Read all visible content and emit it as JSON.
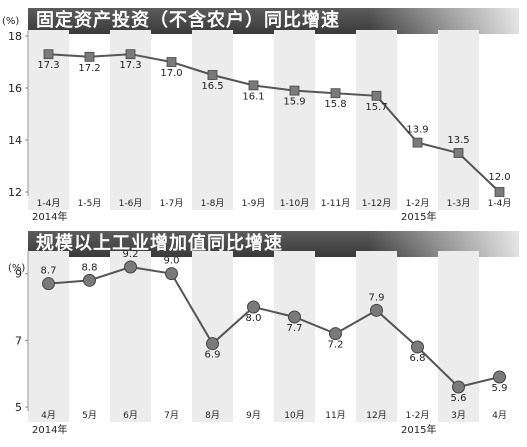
{
  "chart_data": [
    {
      "type": "line",
      "title": "固定资产投资（不含农户）同比增速",
      "unit": "(%)",
      "categories": [
        "1-4月",
        "1-5月",
        "1-6月",
        "1-7月",
        "1-8月",
        "1-9月",
        "1-10月",
        "1-11月",
        "1-12月",
        "1-2月",
        "1-3月",
        "1-4月"
      ],
      "values": [
        17.3,
        17.2,
        17.3,
        17.0,
        16.5,
        16.1,
        15.9,
        15.8,
        15.7,
        13.9,
        13.5,
        12.0
      ],
      "data_labels": [
        "17.3",
        "17.2",
        "17.3",
        "17.0",
        "16.5",
        "16.1",
        "15.9",
        "15.8",
        "15.7",
        "13.9",
        "13.5",
        "12.0"
      ],
      "ylim": [
        12,
        18
      ],
      "yticks": [
        12,
        14,
        16,
        18
      ],
      "year_labels": [
        {
          "label": "2014年",
          "index": 0
        },
        {
          "label": "2015年",
          "index": 9
        }
      ],
      "marker": "square",
      "grid": "alternating-column-bands"
    },
    {
      "type": "line",
      "title": "规模以上工业增加值同比增速",
      "unit": "(%)",
      "categories": [
        "4月",
        "5月",
        "6月",
        "7月",
        "8月",
        "9月",
        "10月",
        "11月",
        "12月",
        "1-2月",
        "3月",
        "4月"
      ],
      "values": [
        8.7,
        8.8,
        9.2,
        9.0,
        6.9,
        8.0,
        7.7,
        7.2,
        7.9,
        6.8,
        5.6,
        5.9
      ],
      "data_labels": [
        "8.7",
        "8.8",
        "9.2",
        "9.0",
        "6.9",
        "8.0",
        "7.7",
        "7.2",
        "7.9",
        "6.8",
        "5.6",
        "5.9"
      ],
      "ylim": [
        5,
        9.5
      ],
      "yticks": [
        5,
        7,
        9
      ],
      "year_labels": [
        {
          "label": "2014年",
          "index": 0
        },
        {
          "label": "2015年",
          "index": 9
        }
      ],
      "marker": "circle",
      "grid": "alternating-column-bands"
    }
  ],
  "colors": {
    "line": "#555555",
    "marker": "#7a7a7a",
    "band": "#ececec",
    "title_bg": "#4a4a4a"
  }
}
